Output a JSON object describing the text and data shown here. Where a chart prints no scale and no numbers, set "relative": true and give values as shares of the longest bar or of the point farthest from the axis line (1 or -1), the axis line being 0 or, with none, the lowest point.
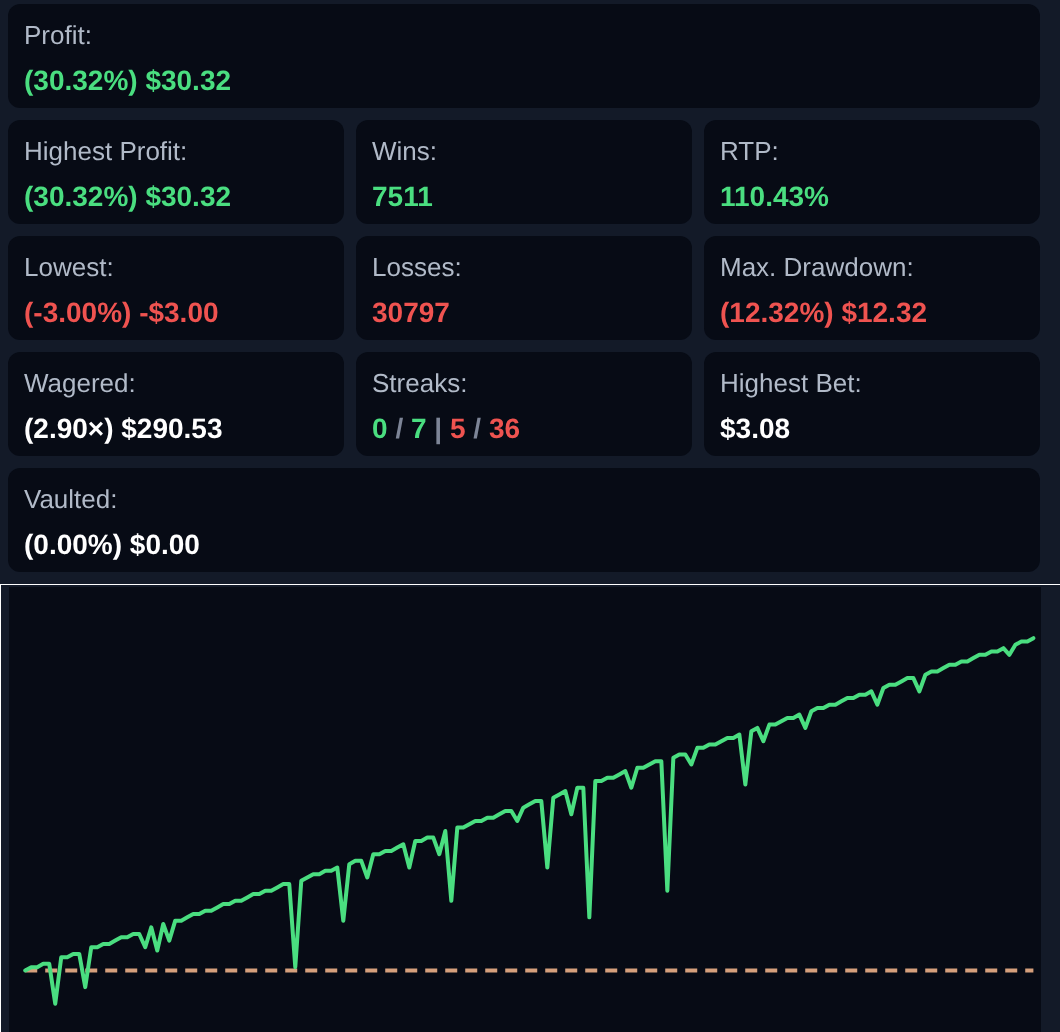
{
  "chart_data": [
    {
      "type": "other",
      "annotations": [
        "Profit:",
        "(30.32%) $30.32",
        "Highest Profit:",
        "(30.32%) $30.32",
        "Wins:",
        "7511",
        "RTP:",
        "110.43%",
        "Lowest:",
        "(-3.00%) -$3.00",
        "Losses:",
        "30797",
        "Max. Drawdown:",
        "(12.32%) $12.32",
        "Wagered:",
        "(2.90×) $290.53",
        "Streaks:",
        "0 / 7 | 5 / 36",
        "Highest Bet:",
        "$3.08",
        "Vaulted:",
        "(0.00%) $0.00"
      ]
    },
    {
      "type": "line",
      "relative": true,
      "categories": [
        null,
        null,
        null,
        null,
        null,
        null,
        null,
        null,
        null,
        null,
        null,
        null,
        null,
        null,
        null,
        null,
        null,
        null,
        null,
        null,
        null,
        null,
        null,
        null,
        null,
        null,
        null,
        null,
        null,
        null,
        null,
        null,
        null,
        null,
        null,
        null,
        null,
        null,
        null,
        null,
        null,
        null,
        null,
        null,
        null,
        null,
        null,
        null,
        null,
        null,
        null,
        null,
        null,
        null,
        null,
        null,
        null,
        null,
        null,
        null,
        null,
        null,
        null,
        null,
        null,
        null,
        null,
        null,
        null,
        null,
        null,
        null,
        null,
        null,
        null,
        null,
        null,
        null,
        null,
        null,
        null,
        null,
        null,
        null,
        null,
        null,
        null,
        null,
        null,
        null,
        null,
        null,
        null,
        null,
        null,
        null,
        null,
        null,
        null,
        null,
        null,
        null,
        null,
        null,
        null,
        null,
        null,
        null,
        null,
        null,
        null,
        null,
        null,
        null,
        null,
        null,
        null,
        null,
        null,
        null,
        null,
        null,
        null,
        null,
        null,
        null,
        null,
        null,
        null,
        null,
        null,
        null,
        null,
        null,
        null,
        null,
        null,
        null,
        null,
        null,
        null,
        null,
        null,
        null,
        null,
        null,
        null,
        null,
        null,
        null,
        null,
        null,
        null,
        null,
        null,
        null,
        null,
        null,
        null,
        null,
        null,
        null,
        null,
        null,
        null,
        null,
        null,
        null,
        null
      ],
      "series": [
        {
          "color": "#4ade80",
          "values": [
            0.0,
            0.01,
            0.01,
            0.02,
            0.02,
            -0.1,
            0.04,
            0.04,
            0.05,
            0.05,
            -0.05,
            0.07,
            0.07,
            0.08,
            0.08,
            0.09,
            0.1,
            0.1,
            0.11,
            0.11,
            0.07,
            0.13,
            0.06,
            0.14,
            0.09,
            0.15,
            0.15,
            0.16,
            0.17,
            0.17,
            0.18,
            0.18,
            0.19,
            0.2,
            0.2,
            0.21,
            0.21,
            0.22,
            0.23,
            0.23,
            0.24,
            0.24,
            0.25,
            0.26,
            0.26,
            0.01,
            0.27,
            0.28,
            0.29,
            0.29,
            0.3,
            0.3,
            0.31,
            0.15,
            0.32,
            0.33,
            0.33,
            0.28,
            0.35,
            0.35,
            0.36,
            0.36,
            0.37,
            0.38,
            0.31,
            0.39,
            0.39,
            0.4,
            0.4,
            0.35,
            0.42,
            0.21,
            0.43,
            0.43,
            0.44,
            0.45,
            0.45,
            0.46,
            0.46,
            0.47,
            0.48,
            0.48,
            0.45,
            0.49,
            0.5,
            0.51,
            0.51,
            0.31,
            0.52,
            0.53,
            0.54,
            0.47,
            0.55,
            0.55,
            0.16,
            0.57,
            0.57,
            0.58,
            0.58,
            0.59,
            0.6,
            0.55,
            0.61,
            0.61,
            0.62,
            0.63,
            0.63,
            0.24,
            0.64,
            0.65,
            0.65,
            0.62,
            0.67,
            0.67,
            0.68,
            0.68,
            0.69,
            0.7,
            0.7,
            0.71,
            0.56,
            0.72,
            0.73,
            0.69,
            0.74,
            0.74,
            0.75,
            0.76,
            0.76,
            0.77,
            0.73,
            0.78,
            0.79,
            0.79,
            0.8,
            0.8,
            0.81,
            0.82,
            0.82,
            0.83,
            0.83,
            0.84,
            0.8,
            0.85,
            0.86,
            0.86,
            0.87,
            0.88,
            0.88,
            0.84,
            0.89,
            0.9,
            0.9,
            0.91,
            0.92,
            0.92,
            0.93,
            0.93,
            0.94,
            0.95,
            0.95,
            0.96,
            0.96,
            0.97,
            0.95,
            0.98,
            0.99,
            0.99,
            1.0
          ]
        }
      ],
      "ref_lines": [
        {
          "axis": "y",
          "value": 0,
          "color": "#d6a07c",
          "line_style": "dashed"
        }
      ]
    }
  ]
}
